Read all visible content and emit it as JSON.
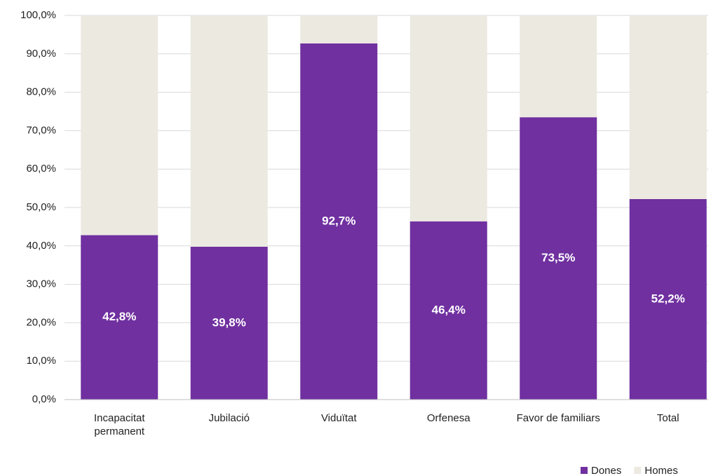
{
  "chart_data": {
    "type": "stacked_bar",
    "categories": [
      "Incapacitat permanent",
      "Jubilació",
      "Viduïtat",
      "Orfenesa",
      "Favor de familiars",
      "Total"
    ],
    "series": [
      {
        "name": "Dones",
        "color": "#7030a0",
        "values": [
          42.8,
          39.8,
          92.7,
          46.4,
          73.5,
          52.2
        ],
        "value_labels": [
          "42,8%",
          "39,8%",
          "92,7%",
          "46,4%",
          "73,5%",
          "52,2%"
        ]
      },
      {
        "name": "Homes",
        "color": "#ece9e1",
        "values": [
          57.2,
          60.2,
          7.3,
          53.6,
          26.5,
          47.8
        ]
      }
    ],
    "ylim": [
      0,
      100
    ],
    "yticks": [
      {
        "value": 0,
        "label": "0,0%"
      },
      {
        "value": 10,
        "label": "10,0%"
      },
      {
        "value": 20,
        "label": "20,0%"
      },
      {
        "value": 30,
        "label": "30,0%"
      },
      {
        "value": 40,
        "label": "40,0%"
      },
      {
        "value": 50,
        "label": "50,0%"
      },
      {
        "value": 60,
        "label": "60,0%"
      },
      {
        "value": 70,
        "label": "70,0%"
      },
      {
        "value": 80,
        "label": "80,0%"
      },
      {
        "value": 90,
        "label": "90,0%"
      },
      {
        "value": 100,
        "label": "100,0%"
      }
    ],
    "grid": true,
    "legend": "bottom-right"
  }
}
